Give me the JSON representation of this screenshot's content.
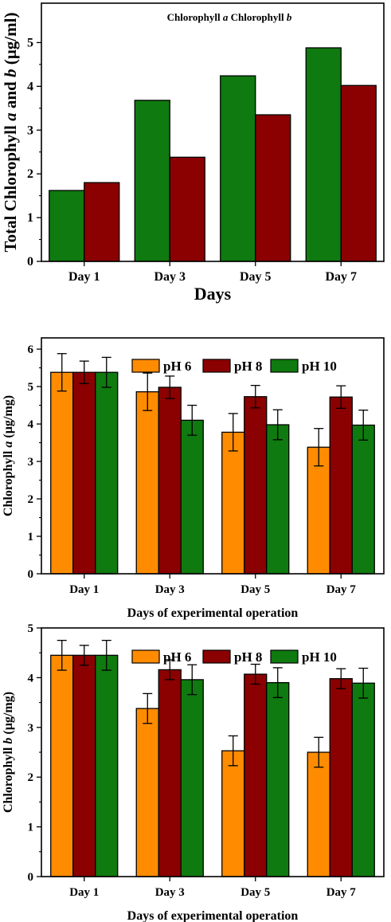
{
  "chart_data": [
    {
      "type": "bar",
      "categories": [
        "Day 1",
        "Day 3",
        "Day 5",
        "Day 7"
      ],
      "series": [
        {
          "name": "Chlorophyll a",
          "color": "#0f7a0f",
          "values": [
            1.62,
            3.68,
            4.24,
            4.88
          ]
        },
        {
          "name": "Chlorophyll b",
          "color": "#8b0000",
          "values": [
            1.8,
            2.38,
            3.35,
            4.02
          ]
        }
      ],
      "legend_text": "Chlorophyll a Chlorophyll b",
      "legend_position": "top-center",
      "xlabel": "Days",
      "ylabel": "Total Chlorophyll a and b (µg/ml)",
      "ylim": [
        0,
        5.9
      ],
      "yticks": [
        "0",
        "1",
        "2",
        "3",
        "4",
        "5"
      ],
      "error_bars": false
    },
    {
      "type": "bar",
      "categories": [
        "Day 1",
        "Day 3",
        "Day 5",
        "Day 7"
      ],
      "series": [
        {
          "name": "pH 6",
          "color": "#ff8c00",
          "values": [
            5.38,
            4.86,
            3.78,
            3.38
          ],
          "errors": [
            0.5,
            0.5,
            0.5,
            0.5
          ]
        },
        {
          "name": "pH 8",
          "color": "#8b0000",
          "values": [
            5.38,
            4.98,
            4.73,
            4.72
          ],
          "errors": [
            0.3,
            0.3,
            0.3,
            0.3
          ]
        },
        {
          "name": "pH 10",
          "color": "#0f7a0f",
          "values": [
            5.38,
            4.1,
            3.98,
            3.97
          ],
          "errors": [
            0.4,
            0.4,
            0.4,
            0.4
          ]
        }
      ],
      "legend_position": "top-right",
      "xlabel": "Days of experimental operation",
      "ylabel": "Chlorophyll a (µg/mg)",
      "ylim": [
        0,
        6.3
      ],
      "yticks": [
        "0",
        "1",
        "2",
        "3",
        "4",
        "5",
        "6"
      ],
      "error_bars": true
    },
    {
      "type": "bar",
      "categories": [
        "Day 1",
        "Day 3",
        "Day 5",
        "Day 7"
      ],
      "series": [
        {
          "name": "pH 6",
          "color": "#ff8c00",
          "values": [
            4.45,
            3.38,
            2.53,
            2.5
          ],
          "errors": [
            0.3,
            0.3,
            0.3,
            0.3
          ]
        },
        {
          "name": "pH 8",
          "color": "#8b0000",
          "values": [
            4.45,
            4.16,
            4.07,
            3.98
          ],
          "errors": [
            0.2,
            0.2,
            0.2,
            0.2
          ]
        },
        {
          "name": "pH 10",
          "color": "#0f7a0f",
          "values": [
            4.45,
            3.96,
            3.9,
            3.89
          ],
          "errors": [
            0.3,
            0.3,
            0.3,
            0.3
          ]
        }
      ],
      "legend_position": "top-right",
      "xlabel": "Days of experimental operation",
      "ylabel": "Chlorophyll b (µg/mg)",
      "ylim": [
        0,
        5.0
      ],
      "yticks": [
        "0",
        "1",
        "2",
        "3",
        "4",
        "5"
      ],
      "error_bars": true
    }
  ]
}
